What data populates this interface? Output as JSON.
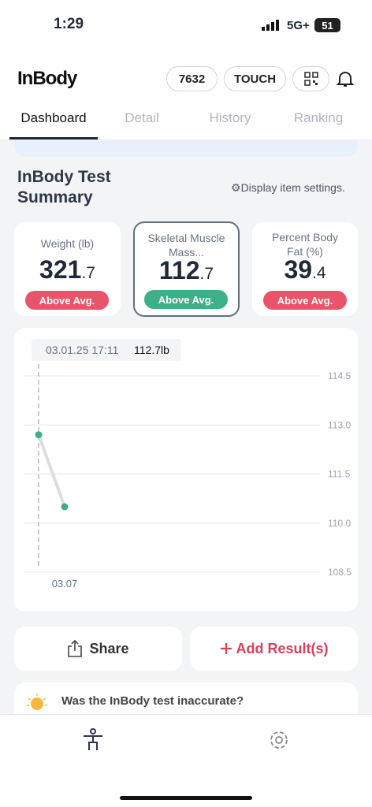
{
  "status_bar": {
    "time": "1:29",
    "network": "5G+",
    "battery": "51"
  },
  "header": {
    "logo": "InBody",
    "member_id": "7632",
    "touch": "TOUCH"
  },
  "tabs": [
    "Dashboard",
    "Detail",
    "History",
    "Ranking"
  ],
  "summary": {
    "title": "InBody Test Summary",
    "settings": "Display item settings."
  },
  "cards": [
    {
      "label": "Weight (lb)",
      "value_main": "321",
      "value_decimal": ".7",
      "badge": "Above Avg."
    },
    {
      "label": "Skeletal Muscle Mass...",
      "value_main": "112",
      "value_decimal": ".7",
      "badge": "Above Avg."
    },
    {
      "label": "Percent Body Fat (%)",
      "value_main": "39",
      "value_decimal": ".4",
      "badge": "Above Avg."
    }
  ],
  "chart_data": {
    "type": "line",
    "annotation": "03.01.25 17:11",
    "categories": [
      null,
      "03.07"
    ],
    "values": [
      112.7,
      110.5
    ],
    "value_labels": [
      "112.7lb",
      null
    ],
    "color": "#3db08a",
    "line_color": "#dcdde0",
    "ylim": [
      108.5,
      114.5
    ],
    "yticks": [
      114.5,
      {
        "value": 113,
        "label": "113.0"
      },
      111.5,
      {
        "value": 110,
        "label": "110.0"
      },
      108.5
    ],
    "grid": true
  },
  "actions": {
    "share": "Share",
    "add": "Add Result(s)"
  },
  "banner": {
    "text": "Was the InBody test inaccurate?"
  }
}
